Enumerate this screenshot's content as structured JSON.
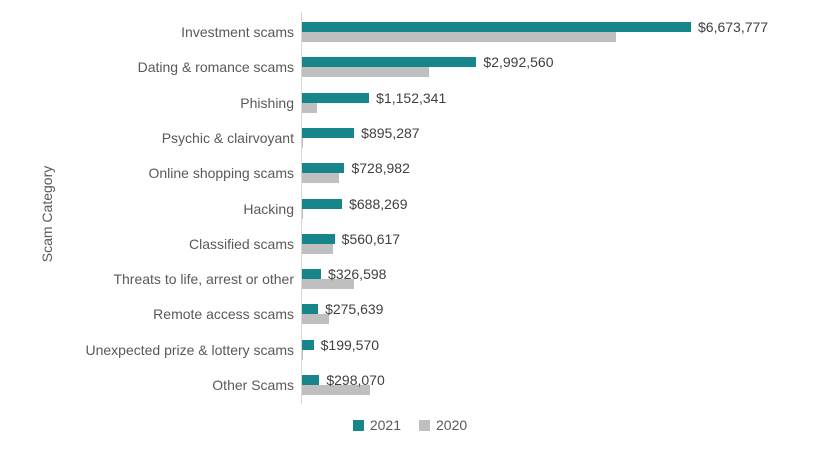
{
  "chart_data": {
    "type": "bar",
    "orientation": "horizontal",
    "ylabel": "Scam Category",
    "grid": false,
    "legend_position": "bottom-center",
    "x_axis": {
      "min": 0,
      "labels_shown": false
    },
    "categories": [
      "Investment scams",
      "Dating & romance scams",
      "Phishing",
      "Psychic & clairvoyant",
      "Online shopping scams",
      "Hacking",
      "Classified scams",
      "Threats to life, arrest or other",
      "Remote access scams",
      "Unexpected prize & lottery scams",
      "Other Scams"
    ],
    "series": [
      {
        "name": "2021",
        "color": "#17868a",
        "data_labels_visible": true,
        "values": [
          6673777,
          2992560,
          1152341,
          895287,
          728982,
          688269,
          560617,
          326598,
          275639,
          199570,
          298070
        ],
        "data_labels": [
          "$6,673,777",
          "$2,992,560",
          "$1,152,341",
          "$895,287",
          "$728,982",
          "$688,269",
          "$560,617",
          "$326,598",
          "$275,639",
          "$199,570",
          "$298,070"
        ]
      },
      {
        "name": "2020",
        "color": "#bfbfbf",
        "data_labels_visible": false,
        "values": [
          5390000,
          2175000,
          250000,
          20000,
          630000,
          20000,
          540000,
          900000,
          460000,
          25000,
          1170000
        ]
      }
    ]
  },
  "styles": {
    "background": "#ffffff",
    "axis_line_color": "#d9d9d9",
    "category_label_color": "#595959",
    "value_label_color": "#404040",
    "legend_text_color": "#595959",
    "y_axis_title_color": "#595959"
  }
}
